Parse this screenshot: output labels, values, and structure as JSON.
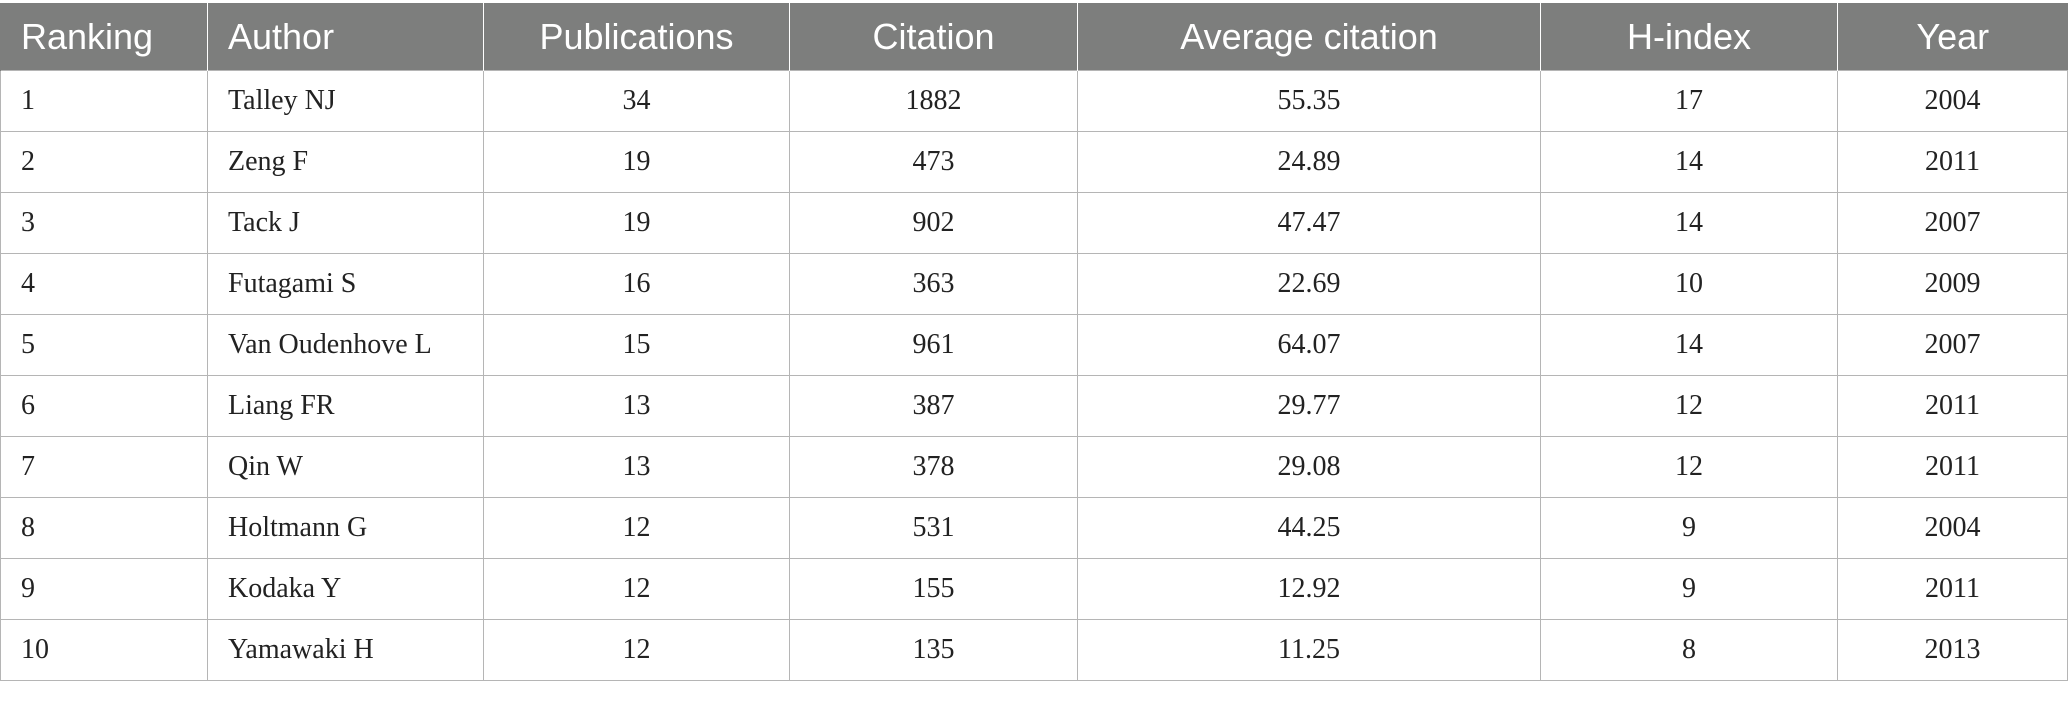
{
  "table": {
    "headers": [
      "Ranking",
      "Author",
      "Publications",
      "Citation",
      "Average citation",
      "H-index",
      "Year"
    ],
    "rows": [
      [
        "1",
        "Talley NJ",
        "34",
        "1882",
        "55.35",
        "17",
        "2004"
      ],
      [
        "2",
        "Zeng F",
        "19",
        "473",
        "24.89",
        "14",
        "2011"
      ],
      [
        "3",
        "Tack J",
        "19",
        "902",
        "47.47",
        "14",
        "2007"
      ],
      [
        "4",
        "Futagami S",
        "16",
        "363",
        "22.69",
        "10",
        "2009"
      ],
      [
        "5",
        "Van Oudenhove L",
        "15",
        "961",
        "64.07",
        "14",
        "2007"
      ],
      [
        "6",
        "Liang FR",
        "13",
        "387",
        "29.77",
        "12",
        "2011"
      ],
      [
        "7",
        "Qin W",
        "13",
        "378",
        "29.08",
        "12",
        "2011"
      ],
      [
        "8",
        "Holtmann G",
        "12",
        "531",
        "44.25",
        "9",
        "2004"
      ],
      [
        "9",
        "Kodaka Y",
        "12",
        "155",
        "12.92",
        "9",
        "2011"
      ],
      [
        "10",
        "Yamawaki H",
        "12",
        "135",
        "11.25",
        "8",
        "2013"
      ]
    ]
  },
  "colors": {
    "header_background": "#7d7e7d",
    "header_text": "#ffffff",
    "grid_line": "#b5b5b5"
  }
}
